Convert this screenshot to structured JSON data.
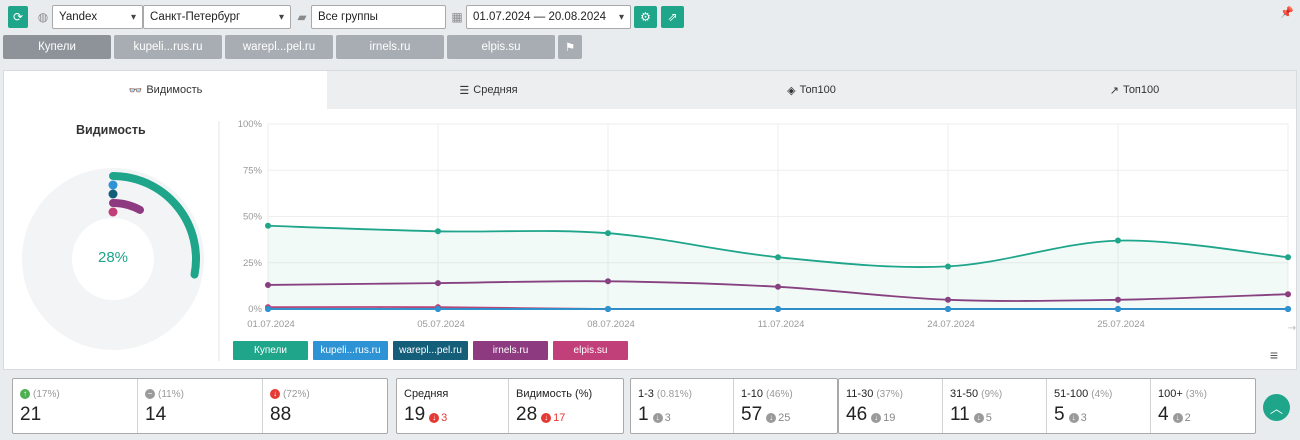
{
  "toolbar": {
    "engine": "Yandex",
    "region": "Санкт-Петербург",
    "group": "Все группы",
    "date_range": "01.07.2024 — 20.08.2024"
  },
  "tags": [
    {
      "label": "Купели",
      "active": true
    },
    {
      "label": "kupeli...rus.ru",
      "active": false
    },
    {
      "label": "warepl...pel.ru",
      "active": false
    },
    {
      "label": "irnels.ru",
      "active": false
    },
    {
      "label": "elpis.su",
      "active": false
    }
  ],
  "tabs": [
    {
      "label": "Видимость",
      "icon": "glasses-icon"
    },
    {
      "label": "Средняя",
      "icon": "list-icon"
    },
    {
      "label": "Топ100",
      "icon": "layers-icon"
    },
    {
      "label": "Топ100",
      "icon": "trend-icon"
    }
  ],
  "visibility": {
    "title": "Видимость",
    "percent_label": "28%",
    "gauge": [
      {
        "name": "Купели",
        "color": "#1ea58a",
        "value": 28
      },
      {
        "name": "kupeli...rus.ru",
        "color": "#2e93d4",
        "value": 0
      },
      {
        "name": "warepl...pel.ru",
        "color": "#155e7a",
        "value": 0
      },
      {
        "name": "irnels.ru",
        "color": "#8e3a80",
        "value": 8
      },
      {
        "name": "elpis.su",
        "color": "#c2407a",
        "value": 0
      }
    ]
  },
  "chart_data": {
    "type": "line",
    "categories": [
      "01.07.2024",
      "05.07.2024",
      "08.07.2024",
      "11.07.2024",
      "24.07.2024",
      "25.07.2024",
      ""
    ],
    "ylim": [
      0,
      100
    ],
    "yticks": [
      "0%",
      "25%",
      "50%",
      "75%",
      "100%"
    ],
    "series": [
      {
        "name": "Купели",
        "color": "#1ea58a",
        "values": [
          45,
          42,
          41,
          28,
          23,
          37,
          28
        ]
      },
      {
        "name": "kupeli...rus.ru",
        "color": "#2e93d4",
        "values": [
          0,
          0,
          0,
          0,
          0,
          0,
          0
        ]
      },
      {
        "name": "warepl...pel.ru",
        "color": "#155e7a",
        "values": [
          0,
          0,
          0,
          0,
          0,
          0,
          0
        ]
      },
      {
        "name": "irnels.ru",
        "color": "#8e3a80",
        "values": [
          13,
          14,
          15,
          12,
          5,
          5,
          8
        ]
      },
      {
        "name": "elpis.su",
        "color": "#c2407a",
        "values": [
          1,
          1,
          0,
          0,
          0,
          0,
          0
        ]
      }
    ]
  },
  "legend": [
    {
      "label": "Купели",
      "color": "#1ea58a"
    },
    {
      "label": "kupeli...rus.ru",
      "color": "#2e93d4"
    },
    {
      "label": "warepl...pel.ru",
      "color": "#155e7a"
    },
    {
      "label": "irnels.ru",
      "color": "#8e3a80"
    },
    {
      "label": "elpis.su",
      "color": "#c2407a"
    }
  ],
  "stats": {
    "movement": [
      {
        "pct": "(17%)",
        "value": "21",
        "kind": "green",
        "sym": "↑"
      },
      {
        "pct": "(11%)",
        "value": "14",
        "kind": "grey",
        "sym": "−"
      },
      {
        "pct": "(72%)",
        "value": "88",
        "kind": "red",
        "sym": "↓"
      }
    ],
    "average": {
      "label": "Средняя",
      "value": "19",
      "delta": "3"
    },
    "visibility": {
      "label": "Видимость (%)",
      "value": "28",
      "delta": "17"
    },
    "ranges_a": [
      {
        "label": "1-3",
        "pct": "(0.81%)",
        "value": "1",
        "delta": "3"
      },
      {
        "label": "1-10",
        "pct": "(46%)",
        "value": "57",
        "delta": "25"
      }
    ],
    "ranges_b": [
      {
        "label": "11-30",
        "pct": "(37%)",
        "value": "46",
        "delta": "19"
      },
      {
        "label": "31-50",
        "pct": "(9%)",
        "value": "11",
        "delta": "5"
      },
      {
        "label": "51-100",
        "pct": "(4%)",
        "value": "5",
        "delta": "3"
      },
      {
        "label": "100+",
        "pct": "(3%)",
        "value": "4",
        "delta": "2"
      }
    ]
  }
}
